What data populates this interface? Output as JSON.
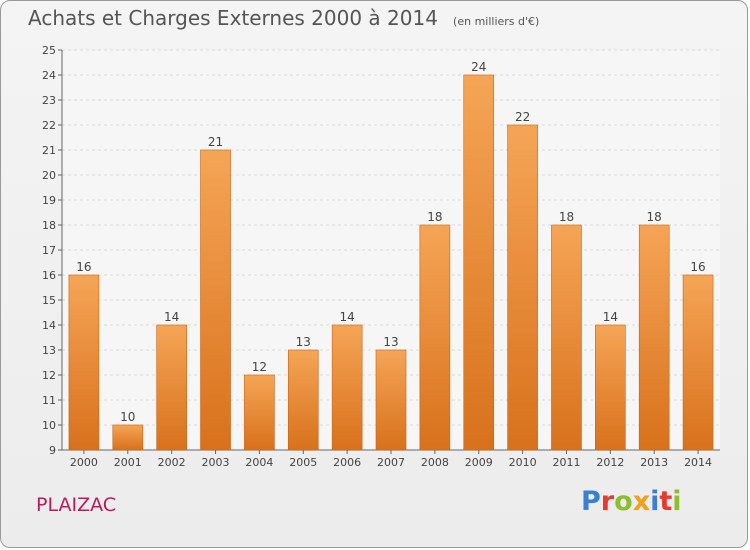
{
  "header": {
    "title": "Achats et Charges Externes 2000 à 2014",
    "unit": "(en milliers d'€)"
  },
  "footer": {
    "place": "PLAIZAC",
    "logo_text": "Proxiti"
  },
  "colors": {
    "bar_top": "#f5a556",
    "bar_bottom": "#d8711c",
    "bar_edge": "#c86414",
    "place": "#c0185c",
    "logo": [
      "#3b7fd1",
      "#e8392f",
      "#8dbf2d",
      "#f2a01c",
      "#3b7fd1",
      "#e8392f",
      "#8dbf2d"
    ]
  },
  "chart_data": {
    "type": "bar",
    "categories": [
      "2000",
      "2001",
      "2002",
      "2003",
      "2004",
      "2005",
      "2006",
      "2007",
      "2008",
      "2009",
      "2010",
      "2011",
      "2012",
      "2013",
      "2014"
    ],
    "values": [
      16,
      10,
      14,
      21,
      12,
      13,
      14,
      13,
      18,
      24,
      22,
      18,
      14,
      18,
      16
    ],
    "ylim": [
      9,
      25
    ],
    "yticks": [
      9,
      10,
      11,
      12,
      13,
      14,
      15,
      16,
      17,
      18,
      19,
      20,
      21,
      22,
      23,
      24,
      25
    ],
    "grid": true,
    "data_labels": true
  }
}
